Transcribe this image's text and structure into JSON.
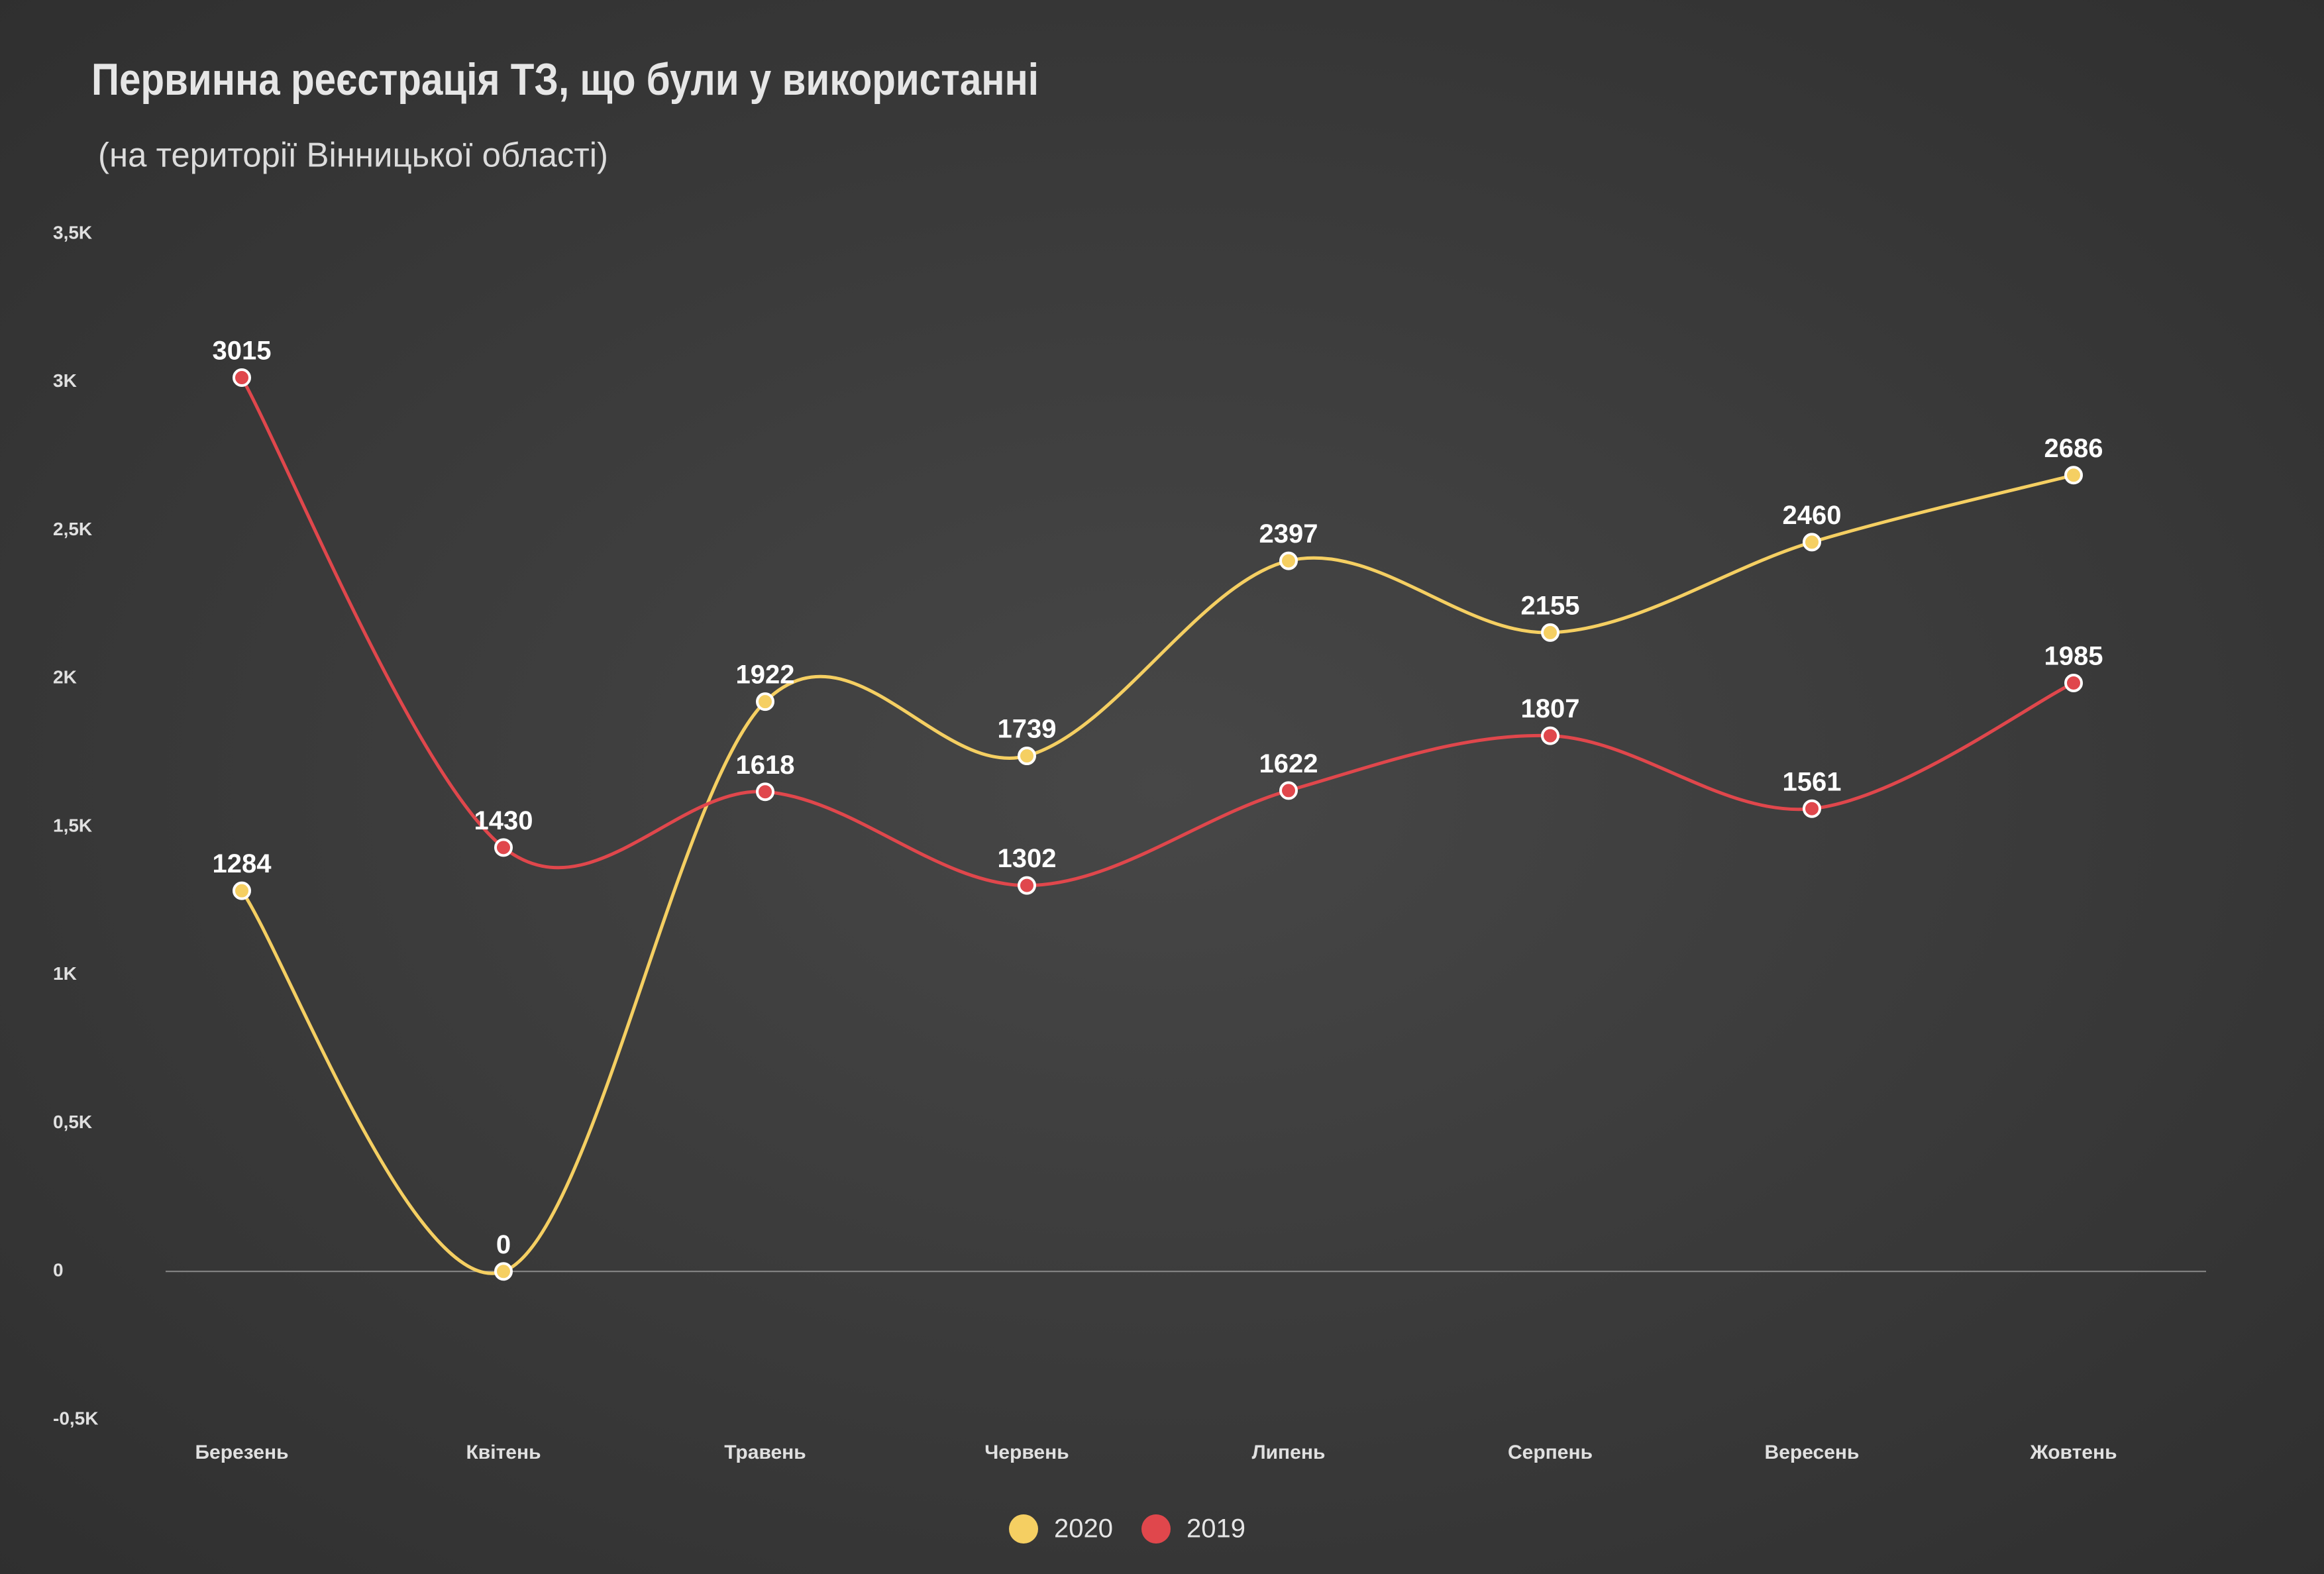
{
  "chart_data": {
    "type": "line",
    "title": "Первинна реєстрація  ТЗ, що були у використанні",
    "subtitle": "(на території Вінницької області)",
    "categories": [
      "Березень",
      "Квітень",
      "Травень",
      "Червень",
      "Липень",
      "Серпень",
      "Вересень",
      "Жовтень"
    ],
    "series": [
      {
        "name": "2020",
        "color": "#f5cf62",
        "values": [
          1284,
          0,
          1922,
          1739,
          2397,
          2155,
          2460,
          2686
        ]
      },
      {
        "name": "2019",
        "color": "#e0474c",
        "values": [
          3015,
          1430,
          1618,
          1302,
          1622,
          1807,
          1561,
          1985
        ]
      }
    ],
    "ylim": [
      -500,
      3500
    ],
    "yticks": [
      {
        "value": -500,
        "label": "-0,5K"
      },
      0,
      {
        "value": 500,
        "label": "0,5K"
      },
      {
        "value": 1000,
        "label": "1K"
      },
      {
        "value": 1500,
        "label": "1,5K"
      },
      {
        "value": 2000,
        "label": "2K"
      },
      {
        "value": 2500,
        "label": "2,5K"
      },
      {
        "value": 3000,
        "label": "3K"
      },
      {
        "value": 3500,
        "label": "3,5K"
      }
    ],
    "grid": false,
    "legend": "bottom"
  }
}
